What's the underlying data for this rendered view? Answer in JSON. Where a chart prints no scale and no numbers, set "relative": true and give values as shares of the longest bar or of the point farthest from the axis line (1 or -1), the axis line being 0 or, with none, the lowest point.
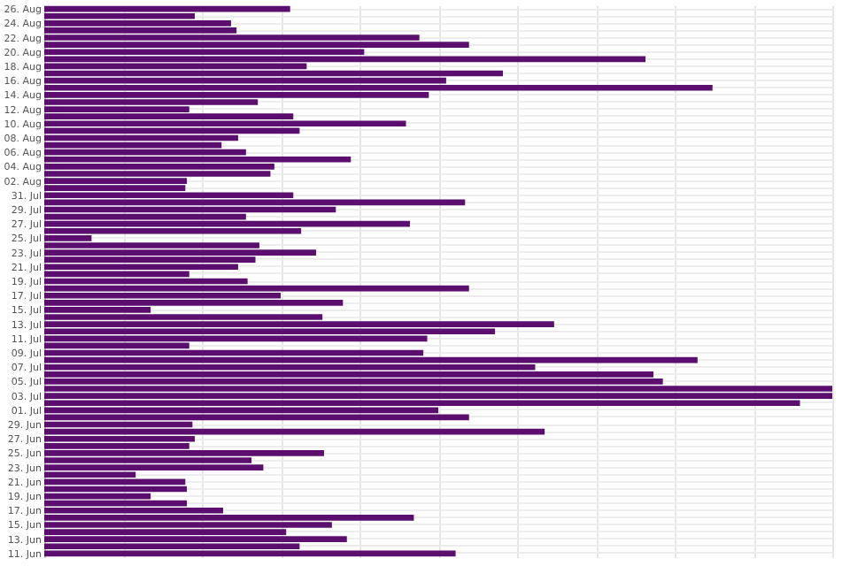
{
  "chart_data": {
    "type": "bar",
    "orientation": "horizontal",
    "relative": true,
    "grid": true,
    "color": "#5b0e6e",
    "categories": [
      "26. Aug",
      null,
      "24. Aug",
      null,
      "22. Aug",
      null,
      "20. Aug",
      null,
      "18. Aug",
      null,
      "16. Aug",
      null,
      "14. Aug",
      null,
      "12. Aug",
      null,
      "10. Aug",
      null,
      "08. Aug",
      null,
      "06. Aug",
      null,
      "04. Aug",
      null,
      "02. Aug",
      null,
      "31. Jul",
      null,
      "29. Jul",
      null,
      "27. Jul",
      null,
      "25. Jul",
      null,
      "23. Jul",
      null,
      "21. Jul",
      null,
      "19. Jul",
      null,
      "17. Jul",
      null,
      "15. Jul",
      null,
      "13. Jul",
      null,
      "11. Jul",
      null,
      "09. Jul",
      null,
      "07. Jul",
      null,
      "05. Jul",
      null,
      "03. Jul",
      null,
      "01. Jul",
      null,
      "29. Jun",
      null,
      "27. Jun",
      null,
      "25. Jun",
      null,
      "23. Jun",
      null,
      "21. Jun",
      null,
      "19. Jun",
      null,
      "17. Jun",
      null,
      "15. Jun",
      null,
      "13. Jun",
      null,
      "11. Jun"
    ],
    "values": [
      0.312,
      0.191,
      0.237,
      0.244,
      0.476,
      0.539,
      0.406,
      0.763,
      0.333,
      0.582,
      0.51,
      0.848,
      0.488,
      0.271,
      0.184,
      0.316,
      0.459,
      0.324,
      0.246,
      0.225,
      0.256,
      0.389,
      0.292,
      0.287,
      0.181,
      0.179,
      0.316,
      0.534,
      0.37,
      0.256,
      0.464,
      0.326,
      0.06,
      0.273,
      0.345,
      0.268,
      0.246,
      0.184,
      0.258,
      0.539,
      0.3,
      0.379,
      0.135,
      0.353,
      0.647,
      0.572,
      0.486,
      0.184,
      0.481,
      0.829,
      0.623,
      0.773,
      0.785,
      1,
      1,
      0.959,
      0.5,
      0.539,
      0.188,
      0.635,
      0.191,
      0.184,
      0.355,
      0.263,
      0.278,
      0.116,
      0.179,
      0.181,
      0.135,
      0.181,
      0.227,
      0.469,
      0.365,
      0.307,
      0.384,
      0.324,
      0.522
    ]
  }
}
